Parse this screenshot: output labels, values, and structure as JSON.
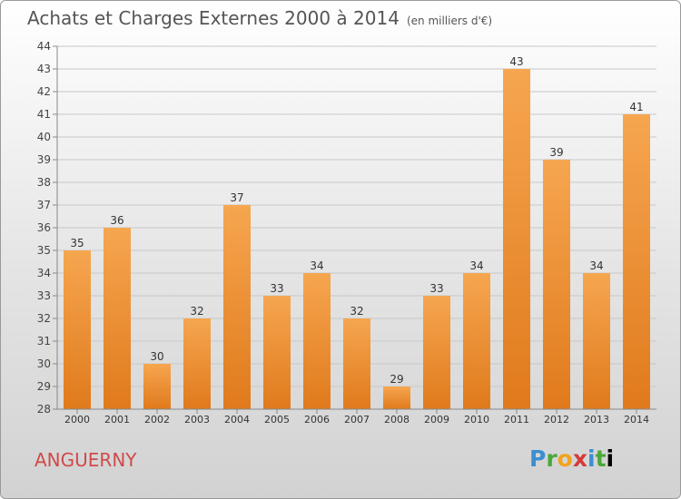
{
  "header": {
    "title": "Achats et Charges Externes 2000 à 2014",
    "unit": "(en milliers d'€)"
  },
  "footer": {
    "commune": "ANGUERNY",
    "logo_letters": [
      "P",
      "r",
      "o",
      "x",
      "i",
      "t",
      "i"
    ]
  },
  "colors": {
    "bar_top": "#f6a650",
    "bar_bottom": "#e07a1c",
    "commune": "#d04a4a"
  },
  "chart_data": {
    "type": "bar",
    "title": "Achats et Charges Externes 2000 à 2014",
    "subtitle": "(en milliers d'€)",
    "categories": [
      "2000",
      "2001",
      "2002",
      "2003",
      "2004",
      "2005",
      "2006",
      "2007",
      "2008",
      "2009",
      "2010",
      "2011",
      "2012",
      "2013",
      "2014"
    ],
    "values": [
      35,
      36,
      30,
      32,
      37,
      33,
      34,
      32,
      29,
      33,
      34,
      43,
      39,
      34,
      41
    ],
    "ylim": [
      28,
      44
    ],
    "yticks": [
      28,
      29,
      30,
      31,
      32,
      33,
      34,
      35,
      36,
      37,
      38,
      39,
      40,
      41,
      42,
      43,
      44
    ],
    "grid": true,
    "data_labels": true
  }
}
